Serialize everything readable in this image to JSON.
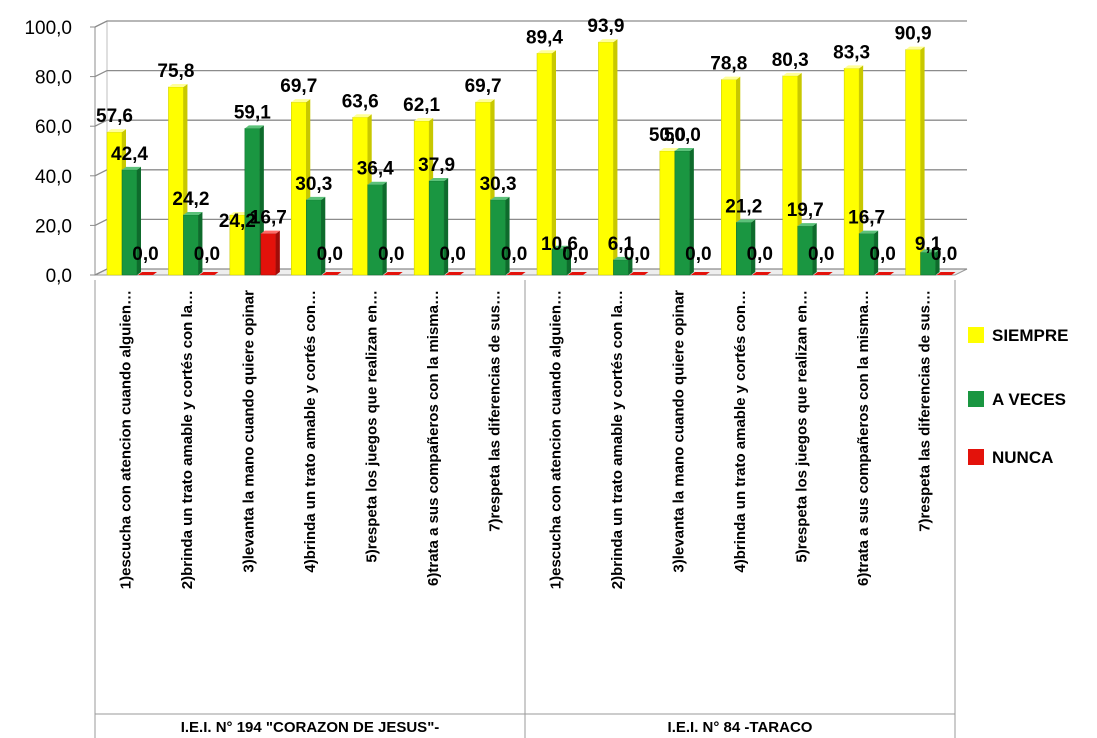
{
  "chart_data": {
    "type": "bar",
    "ylim": [
      0,
      100
    ],
    "yticks": [
      "0,0",
      "20,0",
      "40,0",
      "60,0",
      "80,0",
      "100,0"
    ],
    "grid": true,
    "legend_position": "right",
    "categories": [
      "1)escucha con atencion cuando alguien…",
      "2)brinda un trato amable y cortés con la…",
      "3)levanta la mano cuando quiere opinar",
      "4)brinda un trato amable y cortés con…",
      "5)respeta los juegos que realizan en…",
      "6)trata a sus compañeros con la misma…",
      "7)respeta las diferencias de sus…",
      "1)escucha con atencion cuando alguien…",
      "2)brinda un trato amable y cortés con la…",
      "3)levanta la mano cuando quiere opinar",
      "4)brinda un trato amable y cortés con…",
      "5)respeta los juegos que realizan en…",
      "6)trata a sus compañeros con la misma…",
      "7)respeta las diferencias de sus…"
    ],
    "groups": [
      {
        "label": "I.E.I. N° 194 \"CORAZON DE JESUS\"-",
        "count": 7
      },
      {
        "label": "I.E.I. N° 84 -TARACO",
        "count": 7
      }
    ],
    "series": [
      {
        "name": "SIEMPRE",
        "color": "#ffff00",
        "side": "#c8c800",
        "top": "#ffff99",
        "values": [
          57.6,
          75.8,
          24.2,
          69.7,
          63.6,
          62.1,
          69.7,
          89.4,
          93.9,
          50.0,
          78.8,
          80.3,
          83.3,
          90.9
        ],
        "labels": [
          "57,6",
          "75,8",
          "24,2",
          "69,7",
          "63,6",
          "62,1",
          "69,7",
          "89,4",
          "93,9",
          "50,0",
          "78,8",
          "80,3",
          "83,3",
          "90,9"
        ]
      },
      {
        "name": "A VECES",
        "color": "#1a9641",
        "side": "#0e6b2c",
        "top": "#5cc27a",
        "values": [
          42.4,
          24.2,
          59.1,
          30.3,
          36.4,
          37.9,
          30.3,
          10.6,
          6.1,
          50.0,
          21.2,
          19.7,
          16.7,
          9.1
        ],
        "labels": [
          "42,4",
          "24,2",
          "59,1",
          "30,3",
          "36,4",
          "37,9",
          "30,3",
          "10,6",
          "6,1",
          "50,0",
          "21,2",
          "19,7",
          "16,7",
          "9,1"
        ]
      },
      {
        "name": "NUNCA",
        "color": "#e3120b",
        "side": "#a00c08",
        "top": "#ff6b66",
        "values": [
          0.0,
          0.0,
          16.7,
          0.0,
          0.0,
          0.0,
          0.0,
          0.0,
          0.0,
          0.0,
          0.0,
          0.0,
          0.0,
          0.0
        ],
        "labels": [
          "0,0",
          "0,0",
          "16,7",
          "0,0",
          "0,0",
          "0,0",
          "0,0",
          "0,0",
          "0,0",
          "0,0",
          "0,0",
          "0,0",
          "0,0",
          "0,0"
        ]
      }
    ]
  }
}
